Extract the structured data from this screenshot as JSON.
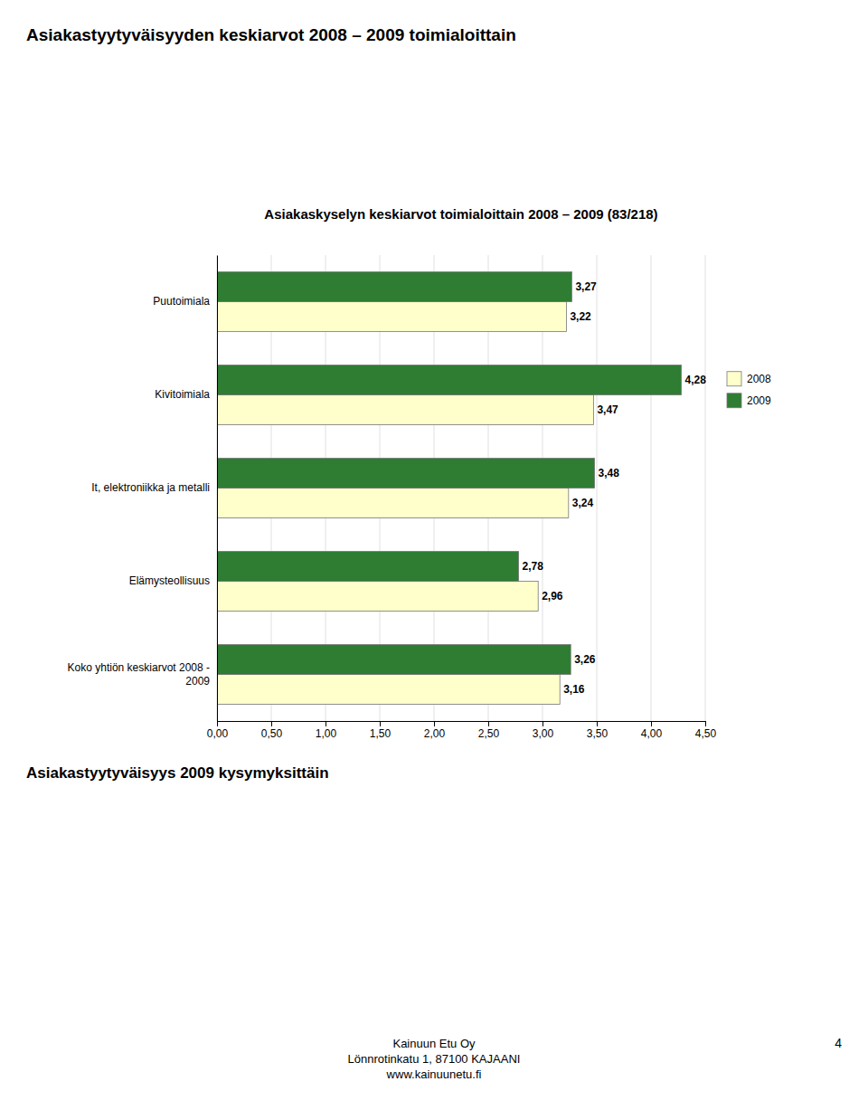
{
  "chart_data": {
    "type": "bar",
    "orientation": "horizontal",
    "title": "Asiakastyytyväisyyden keskiarvot 2008 – 2009 toimialoittain",
    "subtitle": "Asiakaskyselyn keskiarvot toimialoittain 2008 – 2009 (83/218)",
    "categories": [
      "Puutoimiala",
      "Kivitoimiala",
      "It, elektroniikka ja metalli",
      "Elämysteollisuus",
      "Koko yhtiön keskiarvot 2008 -\n2009"
    ],
    "series": [
      {
        "name": "2008",
        "color": "#FFFFCC",
        "values": [
          3.22,
          3.47,
          3.24,
          2.96,
          3.16
        ],
        "value_labels": [
          "3,22",
          "3,47",
          "3,24",
          "2,96",
          "3,16"
        ]
      },
      {
        "name": "2009",
        "color": "#2E7D32",
        "values": [
          3.27,
          4.28,
          3.48,
          2.78,
          3.26
        ],
        "value_labels": [
          "3,27",
          "4,28",
          "3,48",
          "2,78",
          "3,26"
        ]
      }
    ],
    "xlim": [
      0.0,
      4.5
    ],
    "xticks": [
      {
        "value": 0.0,
        "label": "0,00"
      },
      {
        "value": 0.5,
        "label": "0,50"
      },
      {
        "value": 1.0,
        "label": "1,00"
      },
      {
        "value": 1.5,
        "label": "1,50"
      },
      {
        "value": 2.0,
        "label": "2,00"
      },
      {
        "value": 2.5,
        "label": "2,50"
      },
      {
        "value": 3.0,
        "label": "3,00"
      },
      {
        "value": 3.5,
        "label": "3,50"
      },
      {
        "value": 4.0,
        "label": "4,00"
      },
      {
        "value": 4.5,
        "label": "4,50"
      }
    ],
    "grid": true,
    "legend": "right",
    "data_labels": true,
    "annotations": [
      "Asiakastyytyväisyys 2009 kysymyksittäin",
      "Kainuun Etu Oy",
      "Lönnrotinkatu 1, 87100 KAJAANI",
      "www.kainuunetu.fi",
      "4"
    ]
  }
}
